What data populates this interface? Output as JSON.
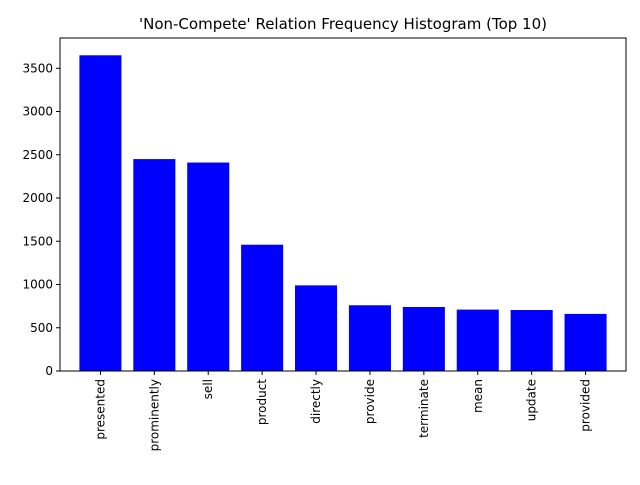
{
  "chart_data": {
    "type": "bar",
    "title": "'Non-Compete' Relation Frequency Histogram (Top 10)",
    "xlabel": "",
    "ylabel": "",
    "categories": [
      "presented",
      "prominently",
      "sell",
      "product",
      "directly",
      "provide",
      "terminate",
      "mean",
      "update",
      "provided"
    ],
    "values": [
      3650,
      2450,
      2410,
      1460,
      990,
      760,
      740,
      710,
      705,
      660
    ],
    "ylim": [
      0,
      3850
    ],
    "yticks": [
      0,
      500,
      1000,
      1500,
      2000,
      2500,
      3000,
      3500
    ],
    "bar_color": "#0000ff",
    "grid": false,
    "legend": "none"
  }
}
